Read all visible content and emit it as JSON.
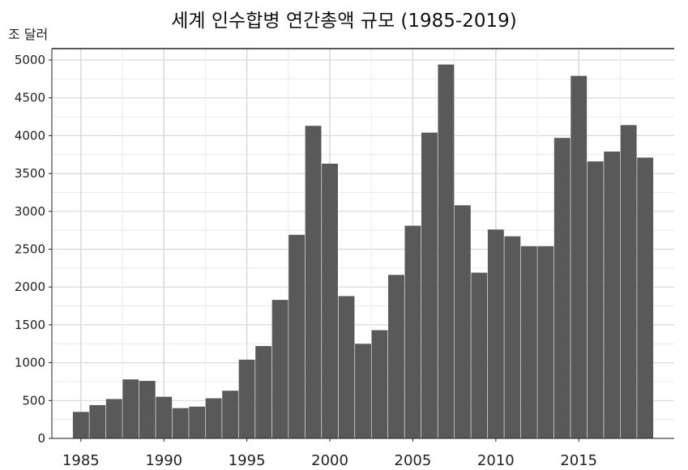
{
  "chart_data": {
    "type": "bar",
    "title": "세계 인수합병 연간총액 규모 (1985-2019)",
    "ylabel": "조 달러",
    "xlabel": "",
    "x": [
      1985,
      1986,
      1987,
      1988,
      1989,
      1990,
      1991,
      1992,
      1993,
      1994,
      1995,
      1996,
      1997,
      1998,
      1999,
      2000,
      2001,
      2002,
      2003,
      2004,
      2005,
      2006,
      2007,
      2008,
      2009,
      2010,
      2011,
      2012,
      2013,
      2014,
      2015,
      2016,
      2017,
      2018,
      2019
    ],
    "values": [
      350,
      440,
      520,
      780,
      760,
      550,
      400,
      420,
      530,
      630,
      1040,
      1220,
      1830,
      2690,
      4130,
      3630,
      1880,
      1250,
      1430,
      2160,
      2810,
      4040,
      4940,
      3080,
      2190,
      2760,
      2670,
      2540,
      2540,
      3970,
      4790,
      3660,
      3790,
      4140,
      3710
    ],
    "xticks": [
      "1985",
      "1990",
      "1995",
      "2000",
      "2005",
      "2010",
      "2015"
    ],
    "yticks": [
      "0",
      "500",
      "1000",
      "1500",
      "2000",
      "2500",
      "3000",
      "3500",
      "4000",
      "4500",
      "5000"
    ],
    "ylim": [
      0,
      5150
    ],
    "grid": true,
    "bar_color": "#595959"
  }
}
